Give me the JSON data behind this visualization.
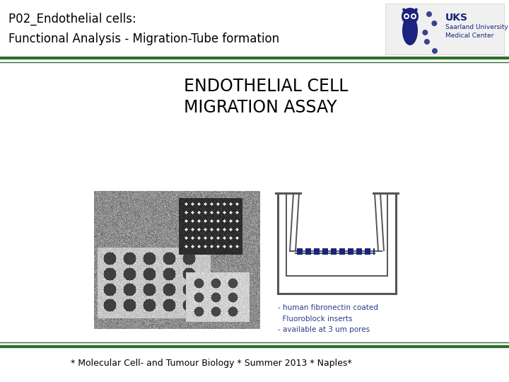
{
  "title_line1": "P02_Endothelial cells:",
  "title_line2": "Functional Analysis - Migration-Tube formation",
  "main_heading_line1": "ENDOTHELIAL CELL",
  "main_heading_line2": "MIGRATION ASSAY",
  "footer_text": "* Molecular Cell- and Tumour Biology * Summer 2013 * Naples*",
  "bg_color": "#ffffff",
  "title_color": "#000000",
  "heading_color": "#000000",
  "footer_color": "#000000",
  "line_color_top_thick": "#2d6e2d",
  "line_color_top_thin": "#2d6e2d",
  "line_color_bot_thick": "#2d6e2d",
  "line_color_bot_thin": "#2d6e2d",
  "title_fontsize": 12,
  "heading_fontsize": 17,
  "footer_fontsize": 9,
  "annotation_text": "- human fibronectin coated\n  Fluoroblock inserts\n- available at 3 um pores",
  "annotation_color": "#2b3a8a",
  "annotation_fontsize": 7.5,
  "uks_text": "UKS",
  "uks_sub1": "Saarland University",
  "uks_sub2": "Medical Center",
  "uks_color": "#1a237e",
  "well_line_color": "#555555",
  "membrane_color": "#1a237e"
}
